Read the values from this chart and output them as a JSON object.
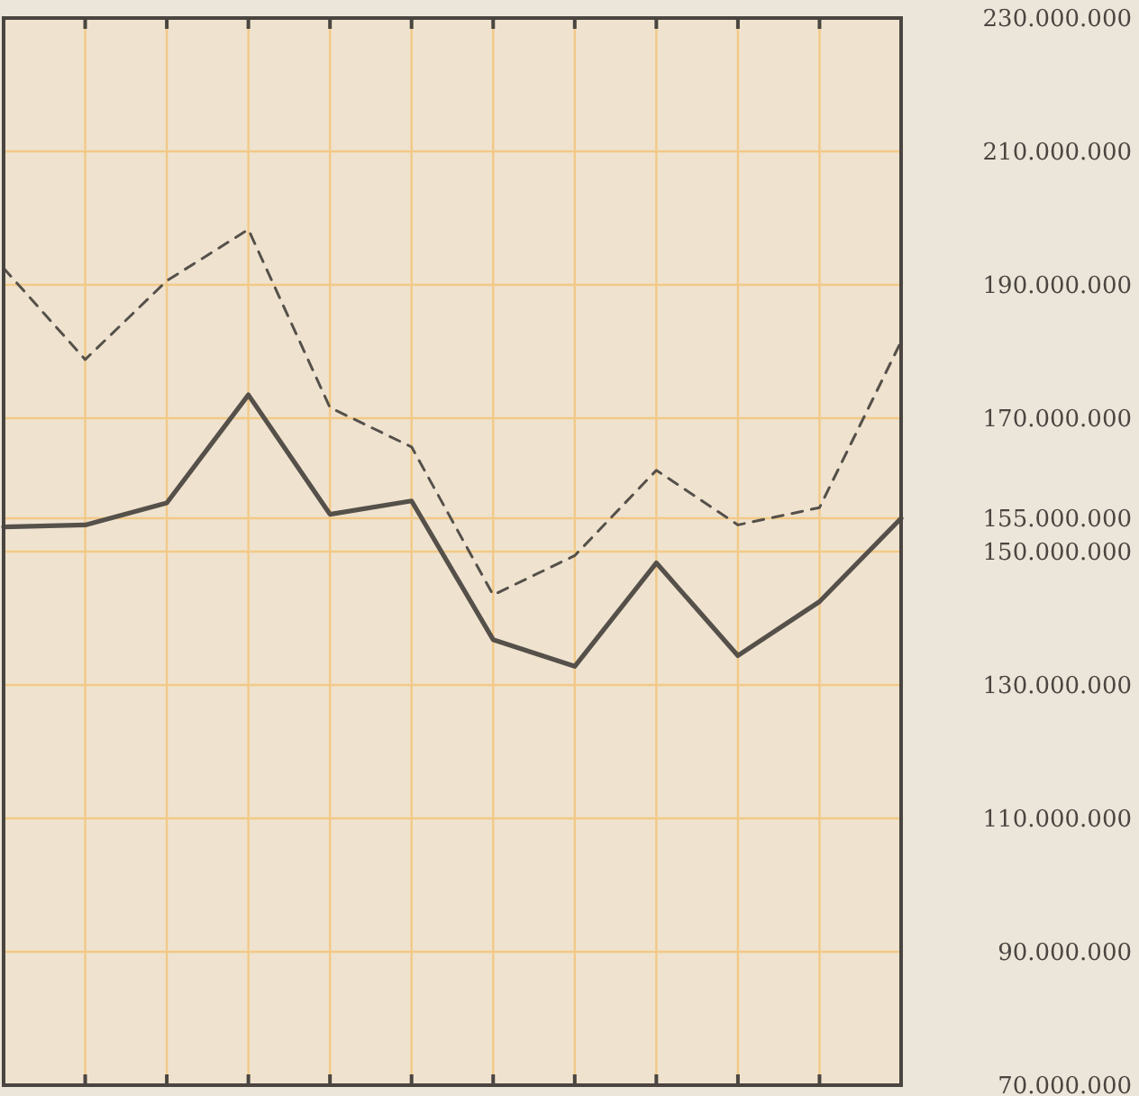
{
  "chart_data": {
    "type": "line",
    "categories": [
      null,
      null,
      null,
      null,
      null,
      null,
      null,
      null,
      null,
      null,
      null,
      null
    ],
    "series": [
      {
        "color": "#55504a",
        "line_style": "solid",
        "values": [
          153700000,
          154000000,
          157300000,
          173500000,
          155600000,
          157600000,
          136800000,
          132800000,
          148300000,
          134400000,
          142500000,
          155000000
        ]
      },
      {
        "color": "#55504a",
        "line_style": "dashed",
        "values": [
          192500000,
          178800000,
          190600000,
          198300000,
          171600000,
          165700000,
          143500000,
          149400000,
          162200000,
          154000000,
          156600000,
          181500000
        ]
      }
    ],
    "ylim": [
      70000000,
      230000000
    ],
    "yticks": [
      {
        "value": 70000000,
        "label": "70.000.000"
      },
      {
        "value": 90000000,
        "label": "90.000.000"
      },
      {
        "value": 110000000,
        "label": "110.000.000"
      },
      {
        "value": 130000000,
        "label": "130.000.000"
      },
      {
        "value": 150000000,
        "label": "150.000.000"
      },
      {
        "value": 155000000,
        "label": "155.000.000"
      },
      {
        "value": 170000000,
        "label": "170.000.000"
      },
      {
        "value": 190000000,
        "label": "190.000.000"
      },
      {
        "value": 210000000,
        "label": "210.000.000"
      },
      {
        "value": 230000000,
        "label": "230.000.000"
      }
    ],
    "grid": true,
    "marker": "none",
    "tick_labels": "y"
  }
}
